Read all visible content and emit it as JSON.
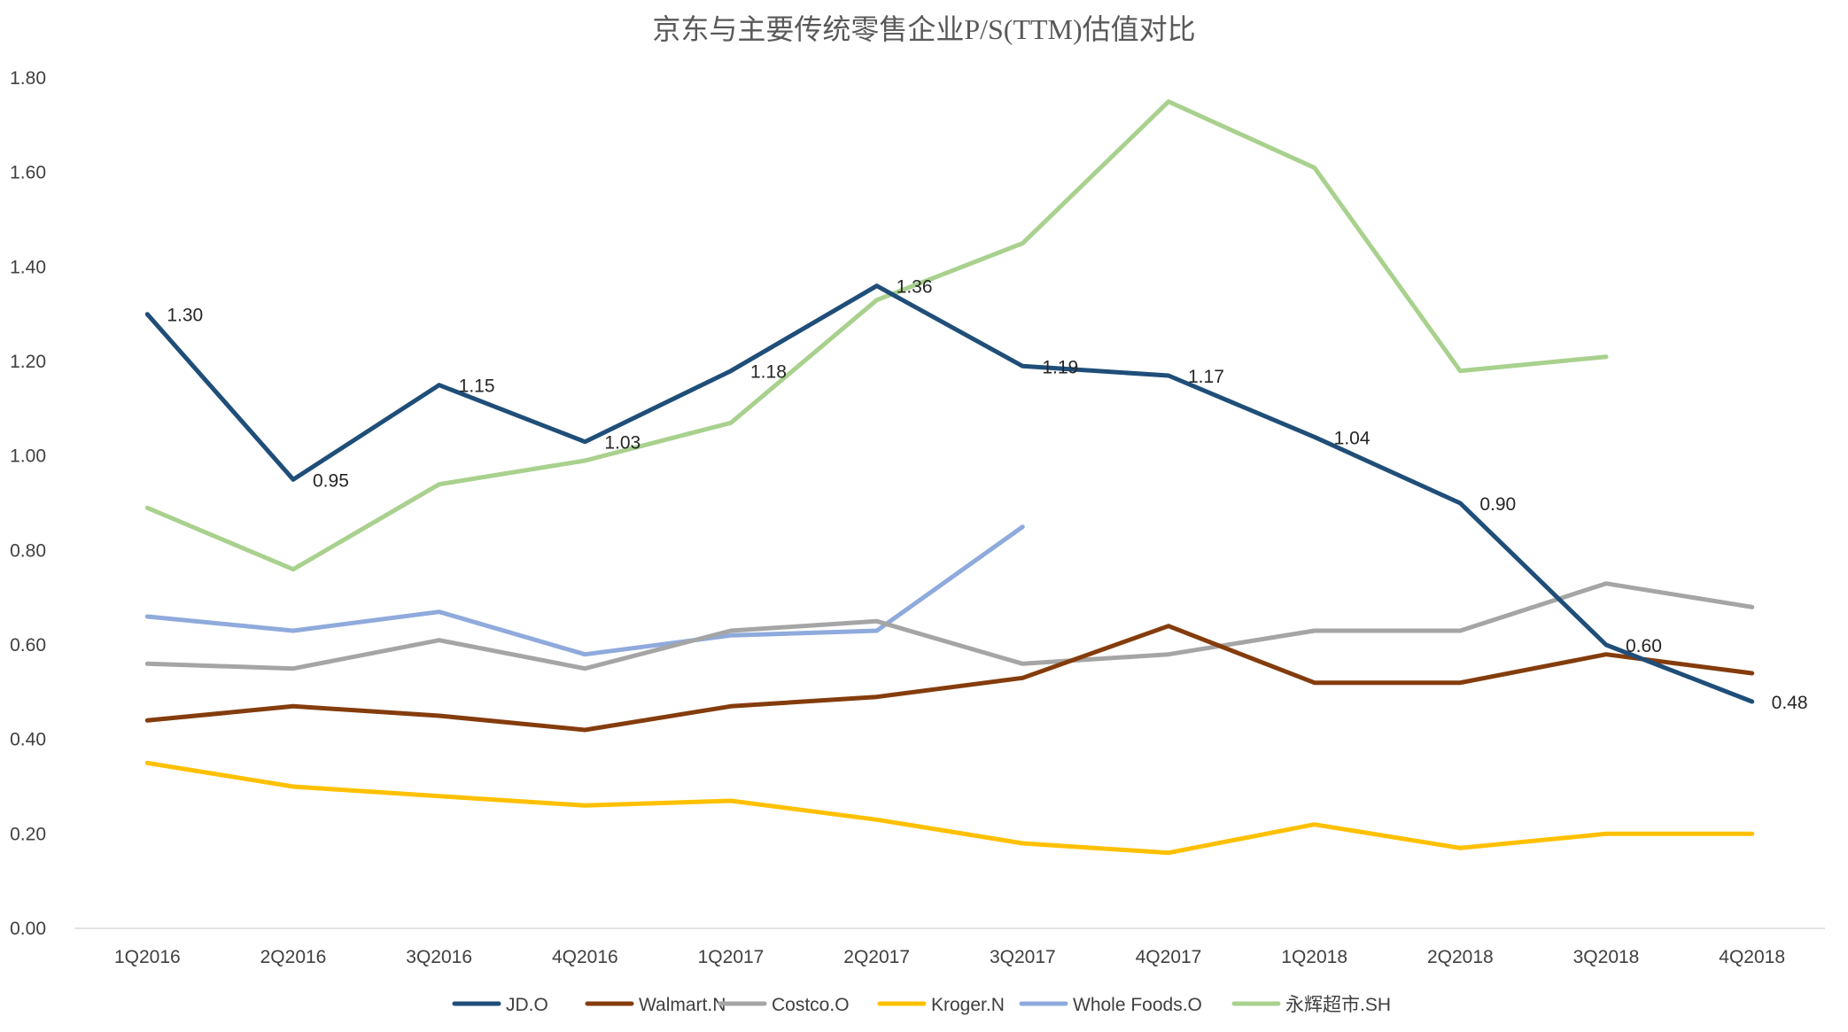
{
  "chart_data": {
    "type": "line",
    "title": "京东与主要传统零售企业P/S(TTM)估值对比",
    "xlabel": "",
    "ylabel": "",
    "categories": [
      "1Q2016",
      "2Q2016",
      "3Q2016",
      "4Q2016",
      "1Q2017",
      "2Q2017",
      "3Q2017",
      "4Q2017",
      "1Q2018",
      "2Q2018",
      "3Q2018",
      "4Q2018"
    ],
    "ylim": [
      0,
      1.8
    ],
    "yticks": [
      "0.00",
      "0.20",
      "0.40",
      "0.60",
      "0.80",
      "1.00",
      "1.20",
      "1.40",
      "1.60",
      "1.80"
    ],
    "grid": false,
    "legend": "bottom",
    "series": [
      {
        "name": "JD.O",
        "color": "#1f4e79",
        "values": [
          1.3,
          0.95,
          1.15,
          1.03,
          1.18,
          1.36,
          1.19,
          1.17,
          1.04,
          0.9,
          0.6,
          0.48
        ],
        "labels": [
          "1.30",
          "0.95",
          "1.15",
          "1.03",
          "1.18",
          "1.36",
          "1.19",
          "1.17",
          "1.04",
          "0.90",
          "0.60",
          "0.48"
        ]
      },
      {
        "name": "Walmart.N",
        "color": "#843c0c",
        "values": [
          0.44,
          0.47,
          0.45,
          0.42,
          0.47,
          0.49,
          0.53,
          0.64,
          0.52,
          0.52,
          0.58,
          0.54
        ]
      },
      {
        "name": "Costco.O",
        "color": "#a5a5a5",
        "values": [
          0.56,
          0.55,
          0.61,
          0.55,
          0.63,
          0.65,
          0.56,
          0.58,
          0.63,
          0.63,
          0.73,
          0.68
        ]
      },
      {
        "name": "Kroger.N",
        "color": "#ffc000",
        "values": [
          0.35,
          0.3,
          0.28,
          0.26,
          0.27,
          0.23,
          0.18,
          0.16,
          0.22,
          0.17,
          0.2,
          0.2
        ]
      },
      {
        "name": "Whole Foods.O",
        "color": "#8faadc",
        "values": [
          0.66,
          0.63,
          0.67,
          0.58,
          0.62,
          0.63,
          0.85,
          null,
          null,
          null,
          null,
          null
        ]
      },
      {
        "name": "永辉超市.SH",
        "color": "#a9d18e",
        "values": [
          0.89,
          0.76,
          0.94,
          0.99,
          1.07,
          1.33,
          1.45,
          1.75,
          1.61,
          1.18,
          1.21,
          null
        ]
      }
    ]
  }
}
